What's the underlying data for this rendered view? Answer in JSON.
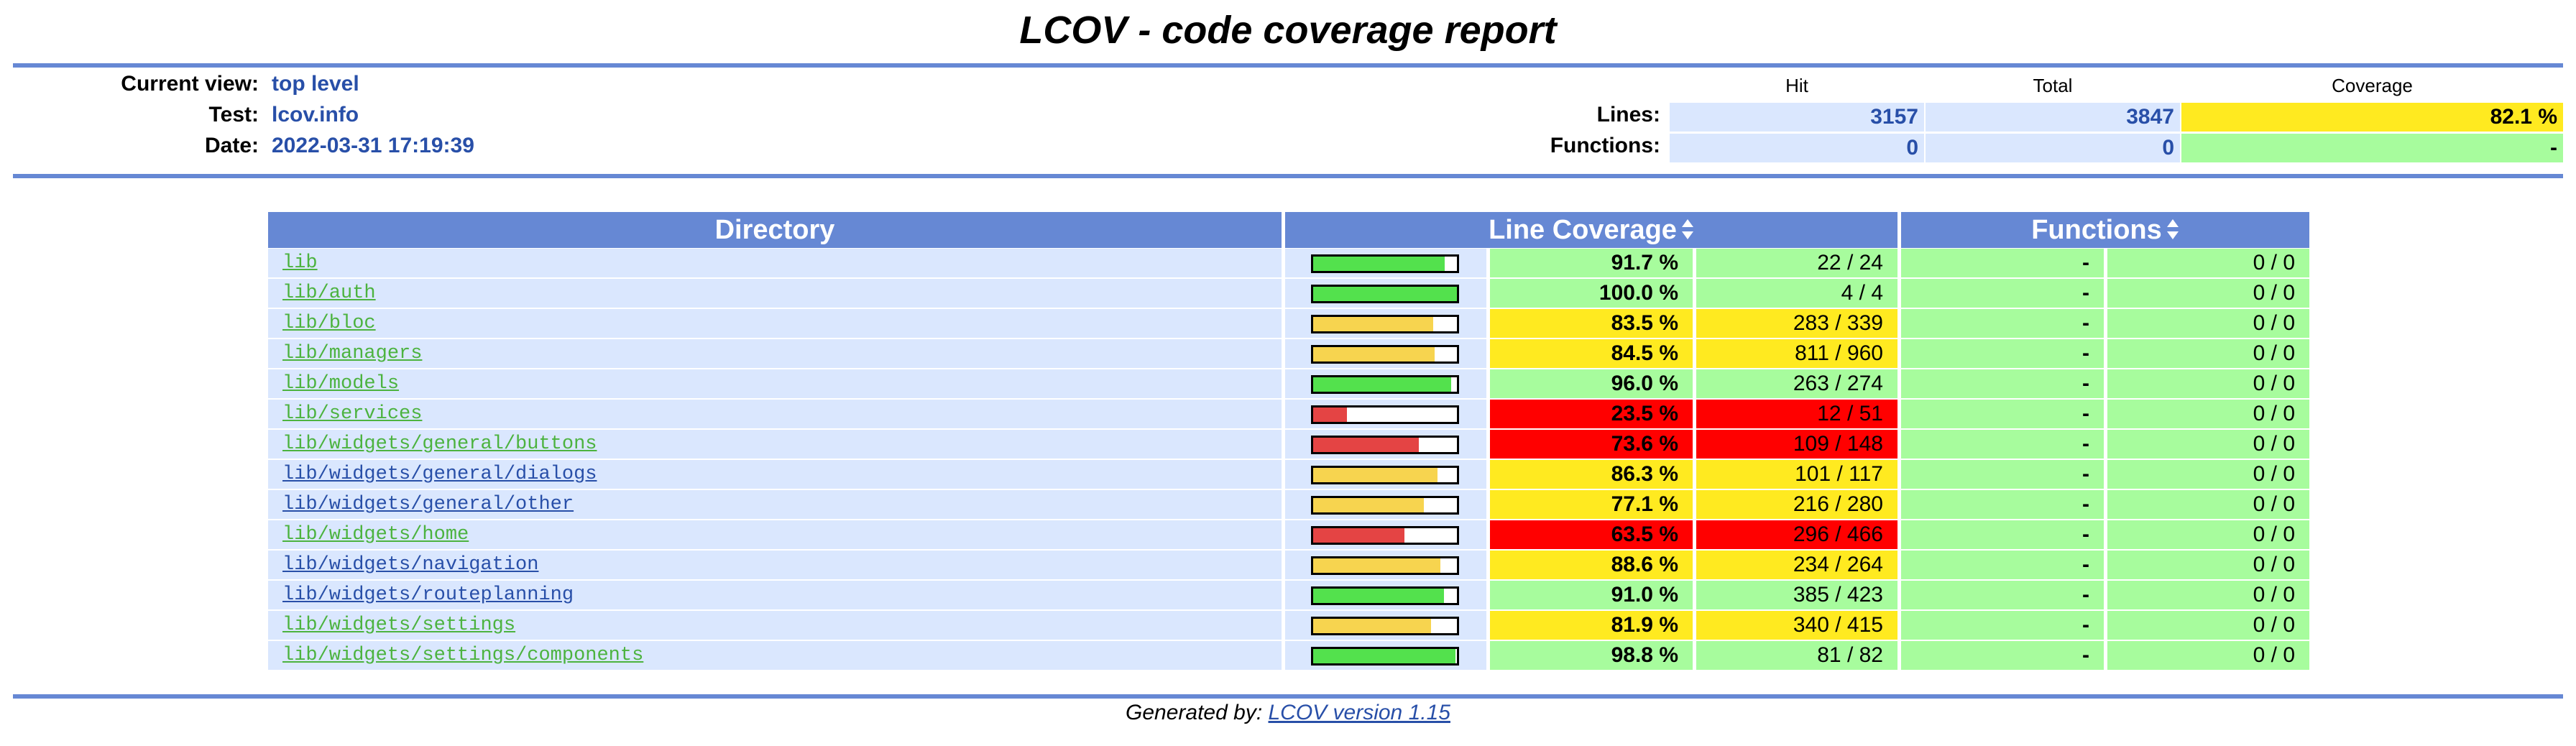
{
  "title": "LCOV - code coverage report",
  "header": {
    "current_view_label": "Current view:",
    "current_view": "top level",
    "test_label": "Test:",
    "test": "lcov.info",
    "date_label": "Date:",
    "date": "2022-03-31 17:19:39"
  },
  "summary": {
    "col_hit": "Hit",
    "col_total": "Total",
    "col_coverage": "Coverage",
    "lines_label": "Lines:",
    "lines_hit": "3157",
    "lines_total": "3847",
    "lines_coverage": "82.1 %",
    "functions_label": "Functions:",
    "functions_hit": "0",
    "functions_total": "0",
    "functions_coverage": "-"
  },
  "table": {
    "col_directory": "Directory",
    "col_line_coverage": "Line Coverage",
    "col_functions": "Functions",
    "rows": [
      {
        "dir": "lib",
        "rate": "91.7 %",
        "count": "22 / 24",
        "fraction": 0.917,
        "level": "hi",
        "fn_rate": "-",
        "fn_count": "0 / 0",
        "visited": true
      },
      {
        "dir": "lib/auth",
        "rate": "100.0 %",
        "count": "4 / 4",
        "fraction": 1.0,
        "level": "hi",
        "fn_rate": "-",
        "fn_count": "0 / 0",
        "visited": true
      },
      {
        "dir": "lib/bloc",
        "rate": "83.5 %",
        "count": "283 / 339",
        "fraction": 0.835,
        "level": "med",
        "fn_rate": "-",
        "fn_count": "0 / 0",
        "visited": true
      },
      {
        "dir": "lib/managers",
        "rate": "84.5 %",
        "count": "811 / 960",
        "fraction": 0.845,
        "level": "med",
        "fn_rate": "-",
        "fn_count": "0 / 0",
        "visited": true
      },
      {
        "dir": "lib/models",
        "rate": "96.0 %",
        "count": "263 / 274",
        "fraction": 0.96,
        "level": "hi",
        "fn_rate": "-",
        "fn_count": "0 / 0",
        "visited": true
      },
      {
        "dir": "lib/services",
        "rate": "23.5 %",
        "count": "12 / 51",
        "fraction": 0.235,
        "level": "lo",
        "fn_rate": "-",
        "fn_count": "0 / 0",
        "visited": true
      },
      {
        "dir": "lib/widgets/general/buttons",
        "rate": "73.6 %",
        "count": "109 / 148",
        "fraction": 0.736,
        "level": "lo",
        "fn_rate": "-",
        "fn_count": "0 / 0",
        "visited": true
      },
      {
        "dir": "lib/widgets/general/dialogs",
        "rate": "86.3 %",
        "count": "101 / 117",
        "fraction": 0.863,
        "level": "med",
        "fn_rate": "-",
        "fn_count": "0 / 0",
        "visited": false
      },
      {
        "dir": "lib/widgets/general/other",
        "rate": "77.1 %",
        "count": "216 / 280",
        "fraction": 0.771,
        "level": "med",
        "fn_rate": "-",
        "fn_count": "0 / 0",
        "visited": false
      },
      {
        "dir": "lib/widgets/home",
        "rate": "63.5 %",
        "count": "296 / 466",
        "fraction": 0.635,
        "level": "lo",
        "fn_rate": "-",
        "fn_count": "0 / 0",
        "visited": true
      },
      {
        "dir": "lib/widgets/navigation",
        "rate": "88.6 %",
        "count": "234 / 264",
        "fraction": 0.886,
        "level": "med",
        "fn_rate": "-",
        "fn_count": "0 / 0",
        "visited": false
      },
      {
        "dir": "lib/widgets/routeplanning",
        "rate": "91.0 %",
        "count": "385 / 423",
        "fraction": 0.91,
        "level": "hi",
        "fn_rate": "-",
        "fn_count": "0 / 0",
        "visited": false
      },
      {
        "dir": "lib/widgets/settings",
        "rate": "81.9 %",
        "count": "340 / 415",
        "fraction": 0.819,
        "level": "med",
        "fn_rate": "-",
        "fn_count": "0 / 0",
        "visited": true
      },
      {
        "dir": "lib/widgets/settings/components",
        "rate": "98.8 %",
        "count": "81 / 82",
        "fraction": 0.988,
        "level": "hi",
        "fn_rate": "-",
        "fn_count": "0 / 0",
        "visited": true
      }
    ]
  },
  "colors": {
    "header_blue": "#6688d4",
    "light_blue": "#dae7fe",
    "cov_hi_bg": "#a7fc9d",
    "cov_med_bg": "#ffea20",
    "cov_lo_bg": "#ff0000",
    "bar_hi": "#53e14d",
    "bar_med": "#f7d44f",
    "bar_lo": "#e44444",
    "link_visited": "#4cb33f",
    "link_unvisited": "#284fa8"
  },
  "footer": {
    "prefix": "Generated by:",
    "link": "LCOV version 1.15"
  }
}
